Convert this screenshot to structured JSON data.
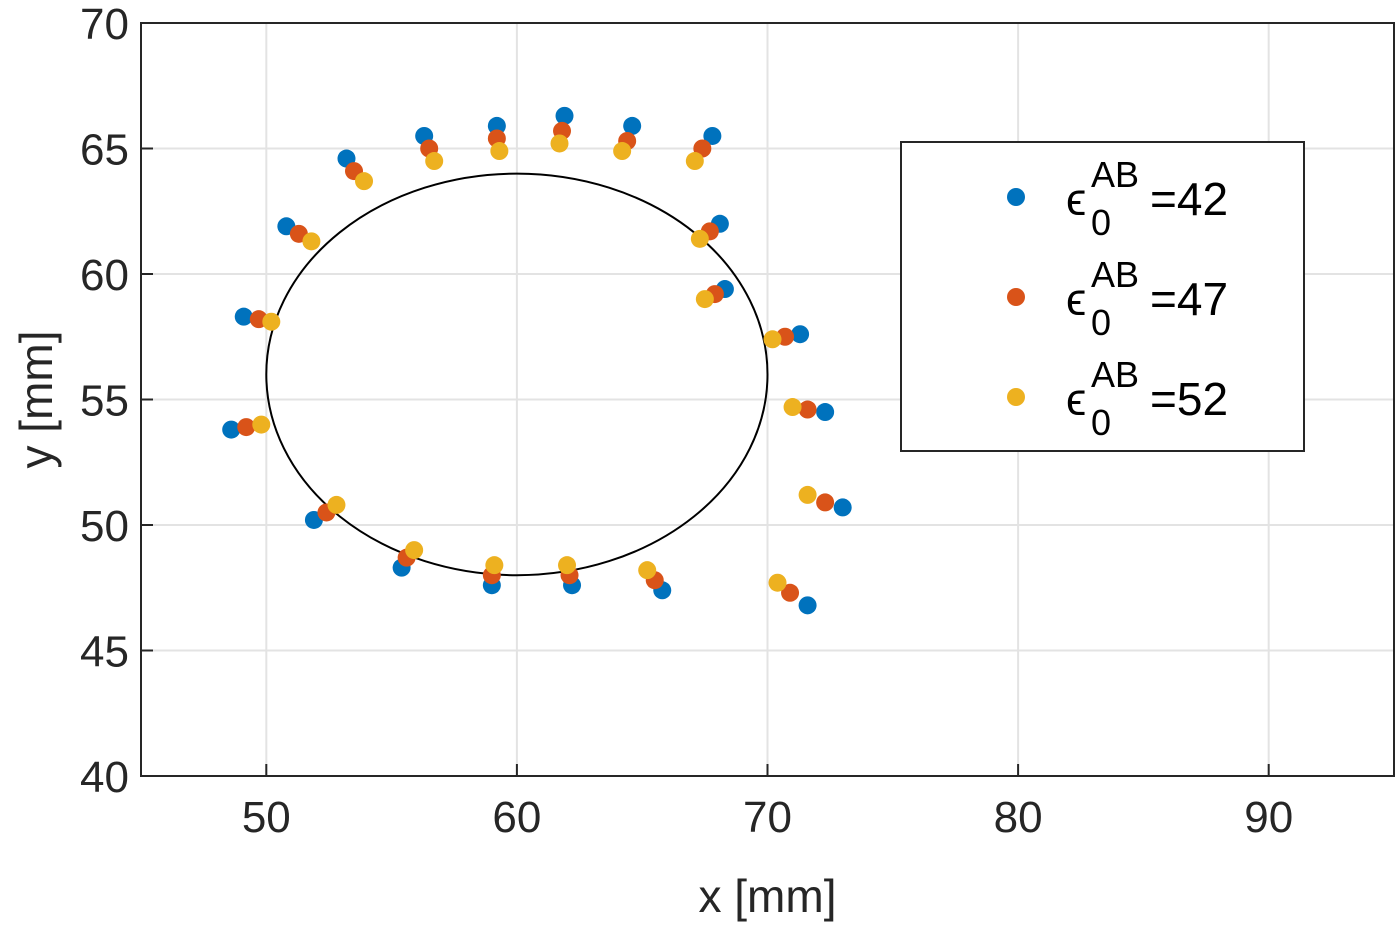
{
  "chart_data": {
    "type": "scatter",
    "title": "",
    "xlabel": "x [mm]",
    "ylabel": "y [mm]",
    "xlim": [
      45,
      95
    ],
    "ylim": [
      40,
      70
    ],
    "xticks": [
      50,
      60,
      70,
      80,
      90
    ],
    "yticks": [
      40,
      45,
      50,
      55,
      60,
      65,
      70
    ],
    "grid": true,
    "legend_position": "top-right",
    "reference_ellipse": {
      "cx": 60,
      "cy": 56,
      "rx": 10,
      "ry": 8
    },
    "series": [
      {
        "name": "ε0AB=42",
        "legend": {
          "symbol": "ϵ",
          "sub": "0",
          "sup": "AB",
          "suffix": "=42"
        },
        "color": "#0072BD",
        "points": [
          [
            48.6,
            53.8
          ],
          [
            49.1,
            58.3
          ],
          [
            50.8,
            61.9
          ],
          [
            53.2,
            64.6
          ],
          [
            56.3,
            65.5
          ],
          [
            59.2,
            65.9
          ],
          [
            61.9,
            66.3
          ],
          [
            64.6,
            65.9
          ],
          [
            67.8,
            65.5
          ],
          [
            68.1,
            62.0
          ],
          [
            68.3,
            59.4
          ],
          [
            71.3,
            57.6
          ],
          [
            72.3,
            54.5
          ],
          [
            73.0,
            50.7
          ],
          [
            71.6,
            46.8
          ],
          [
            65.8,
            47.4
          ],
          [
            62.2,
            47.6
          ],
          [
            59.0,
            47.6
          ],
          [
            55.4,
            48.3
          ],
          [
            51.9,
            50.2
          ]
        ]
      },
      {
        "name": "ε0AB=47",
        "legend": {
          "symbol": "ϵ",
          "sub": "0",
          "sup": "AB",
          "suffix": "=47"
        },
        "color": "#D95319",
        "points": [
          [
            49.2,
            53.9
          ],
          [
            49.7,
            58.2
          ],
          [
            51.3,
            61.6
          ],
          [
            53.5,
            64.1
          ],
          [
            56.5,
            65.0
          ],
          [
            59.2,
            65.4
          ],
          [
            61.8,
            65.7
          ],
          [
            64.4,
            65.3
          ],
          [
            67.4,
            65.0
          ],
          [
            67.7,
            61.7
          ],
          [
            67.9,
            59.2
          ],
          [
            70.7,
            57.5
          ],
          [
            71.6,
            54.6
          ],
          [
            72.3,
            50.9
          ],
          [
            70.9,
            47.3
          ],
          [
            65.5,
            47.8
          ],
          [
            62.1,
            48.0
          ],
          [
            59.0,
            48.0
          ],
          [
            55.6,
            48.7
          ],
          [
            52.4,
            50.5
          ]
        ]
      },
      {
        "name": "ε0AB=52",
        "legend": {
          "symbol": "ϵ",
          "sub": "0",
          "sup": "AB",
          "suffix": "=52"
        },
        "color": "#EDB120",
        "points": [
          [
            49.8,
            54.0
          ],
          [
            50.2,
            58.1
          ],
          [
            51.8,
            61.3
          ],
          [
            53.9,
            63.7
          ],
          [
            56.7,
            64.5
          ],
          [
            59.3,
            64.9
          ],
          [
            61.7,
            65.2
          ],
          [
            64.2,
            64.9
          ],
          [
            67.1,
            64.5
          ],
          [
            67.3,
            61.4
          ],
          [
            67.5,
            59.0
          ],
          [
            70.2,
            57.4
          ],
          [
            71.0,
            54.7
          ],
          [
            71.6,
            51.2
          ],
          [
            70.4,
            47.7
          ],
          [
            65.2,
            48.2
          ],
          [
            62.0,
            48.4
          ],
          [
            59.1,
            48.4
          ],
          [
            55.9,
            49.0
          ],
          [
            52.8,
            50.8
          ]
        ]
      }
    ]
  }
}
